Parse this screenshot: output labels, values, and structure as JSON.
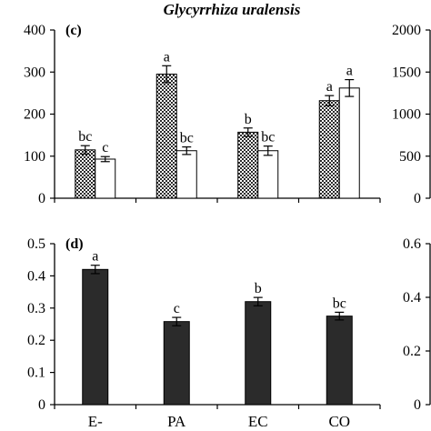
{
  "title": "Glycyrrhiza uralensis",
  "chart_data": [
    {
      "type": "bar",
      "panel": "(c)",
      "categories": [
        "E-",
        "PA",
        "EC",
        "CO"
      ],
      "ylim": [
        0,
        400
      ],
      "yticks": [
        0,
        100,
        200,
        300,
        400
      ],
      "series": [
        {
          "pattern": "crosshatch",
          "values": [
            115,
            295,
            157,
            232
          ],
          "errors": [
            10,
            20,
            10,
            12
          ],
          "labels": [
            "bc",
            "a",
            "b",
            "a"
          ]
        },
        {
          "pattern": "white",
          "values": [
            93,
            113,
            113,
            262
          ],
          "errors": [
            6,
            9,
            11,
            20
          ],
          "labels": [
            "c",
            "bc",
            "bc",
            "a"
          ]
        }
      ],
      "right_axis": {
        "ylim": [
          0,
          2000
        ],
        "yticks": [
          0,
          500,
          1000,
          1500,
          2000
        ]
      }
    },
    {
      "type": "bar",
      "panel": "(d)",
      "categories": [
        "E-",
        "PA",
        "EC",
        "CO"
      ],
      "ylim": [
        0,
        0.5
      ],
      "yticks": [
        "0",
        "0.1",
        "0.2",
        "0.3",
        "0.4",
        "0.5"
      ],
      "series": [
        {
          "color": "#2b2b2b",
          "values": [
            0.42,
            0.258,
            0.32,
            0.275
          ],
          "errors": [
            0.013,
            0.013,
            0.013,
            0.012
          ],
          "labels": [
            "a",
            "c",
            "b",
            "bc"
          ]
        }
      ],
      "right_axis": {
        "ylim": [
          0,
          0.6
        ],
        "yticks": [
          "0",
          "0.2",
          "0.4",
          "0.6"
        ]
      }
    }
  ]
}
